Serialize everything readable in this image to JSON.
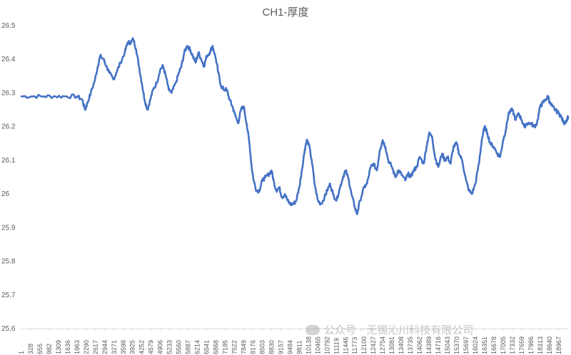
{
  "chart_data": {
    "type": "line",
    "title": "CH1-厚度",
    "xlabel": "",
    "ylabel": "",
    "ylim": [
      25.6,
      26.5
    ],
    "yticks": [
      "25.6",
      "25.7",
      "25.8",
      "25.9",
      "26",
      "26.1",
      "26.2",
      "26.3",
      "26.4",
      "26.5"
    ],
    "x_tick_labels": [
      "1",
      "328",
      "655",
      "982",
      "1309",
      "1636",
      "1963",
      "2290",
      "2617",
      "2944",
      "3271",
      "3598",
      "3925",
      "4252",
      "4579",
      "4906",
      "5233",
      "5560",
      "5887",
      "6214",
      "6541",
      "6868",
      "7195",
      "7522",
      "7849",
      "8176",
      "8503",
      "8830",
      "9157",
      "9484",
      "9811",
      "10138",
      "10465",
      "10792",
      "11119",
      "11446",
      "11773",
      "12100",
      "12427",
      "12754",
      "13081",
      "13408",
      "13735",
      "14062",
      "14389",
      "14716",
      "15043",
      "15370",
      "15697",
      "16024",
      "16351",
      "16678",
      "17005",
      "17332",
      "17659",
      "17986",
      "18313",
      "18640",
      "18967"
    ],
    "x_max": 19300,
    "series": [
      {
        "color": "#4472C4",
        "points": [
          [
            1,
            26.29
          ],
          [
            400,
            26.29
          ],
          [
            800,
            26.29
          ],
          [
            1200,
            26.29
          ],
          [
            1600,
            26.29
          ],
          [
            1963,
            26.29
          ],
          [
            2150,
            26.28
          ],
          [
            2250,
            26.25
          ],
          [
            2330,
            26.27
          ],
          [
            2450,
            26.3
          ],
          [
            2600,
            26.34
          ],
          [
            2700,
            26.38
          ],
          [
            2780,
            26.41
          ],
          [
            2900,
            26.4
          ],
          [
            3000,
            26.38
          ],
          [
            3100,
            26.36
          ],
          [
            3250,
            26.34
          ],
          [
            3350,
            26.36
          ],
          [
            3500,
            26.39
          ],
          [
            3650,
            26.42
          ],
          [
            3750,
            26.45
          ],
          [
            3850,
            26.45
          ],
          [
            3950,
            26.46
          ],
          [
            4050,
            26.43
          ],
          [
            4150,
            26.38
          ],
          [
            4250,
            26.33
          ],
          [
            4350,
            26.28
          ],
          [
            4450,
            26.25
          ],
          [
            4550,
            26.28
          ],
          [
            4650,
            26.31
          ],
          [
            4780,
            26.33
          ],
          [
            4900,
            26.37
          ],
          [
            5000,
            26.38
          ],
          [
            5100,
            26.35
          ],
          [
            5200,
            26.31
          ],
          [
            5300,
            26.3
          ],
          [
            5450,
            26.33
          ],
          [
            5560,
            26.36
          ],
          [
            5650,
            26.38
          ],
          [
            5750,
            26.42
          ],
          [
            5850,
            26.44
          ],
          [
            5950,
            26.43
          ],
          [
            6050,
            26.41
          ],
          [
            6150,
            26.39
          ],
          [
            6250,
            26.42
          ],
          [
            6350,
            26.4
          ],
          [
            6450,
            26.38
          ],
          [
            6541,
            26.41
          ],
          [
            6650,
            26.42
          ],
          [
            6750,
            26.44
          ],
          [
            6868,
            26.4
          ],
          [
            6950,
            26.36
          ],
          [
            7050,
            26.32
          ],
          [
            7150,
            26.31
          ],
          [
            7250,
            26.31
          ],
          [
            7350,
            26.28
          ],
          [
            7450,
            26.26
          ],
          [
            7522,
            26.24
          ],
          [
            7650,
            26.21
          ],
          [
            7750,
            26.25
          ],
          [
            7849,
            26.26
          ],
          [
            7950,
            26.21
          ],
          [
            8050,
            26.15
          ],
          [
            8130,
            26.08
          ],
          [
            8200,
            26.04
          ],
          [
            8300,
            26.01
          ],
          [
            8400,
            26.01
          ],
          [
            8503,
            26.04
          ],
          [
            8620,
            26.05
          ],
          [
            8750,
            26.06
          ],
          [
            8830,
            26.07
          ],
          [
            8900,
            26.04
          ],
          [
            9000,
            26.01
          ],
          [
            9100,
            26.02
          ],
          [
            9200,
            25.99
          ],
          [
            9300,
            26.0
          ],
          [
            9400,
            25.98
          ],
          [
            9484,
            25.97
          ],
          [
            9600,
            25.97
          ],
          [
            9700,
            25.98
          ],
          [
            9811,
            26.02
          ],
          [
            9900,
            26.07
          ],
          [
            10000,
            26.13
          ],
          [
            10070,
            26.16
          ],
          [
            10138,
            26.15
          ],
          [
            10250,
            26.1
          ],
          [
            10350,
            26.03
          ],
          [
            10465,
            25.98
          ],
          [
            10580,
            25.97
          ],
          [
            10700,
            25.99
          ],
          [
            10792,
            26.01
          ],
          [
            10900,
            26.03
          ],
          [
            11000,
            26.0
          ],
          [
            11119,
            25.98
          ],
          [
            11250,
            26.02
          ],
          [
            11350,
            26.05
          ],
          [
            11446,
            26.07
          ],
          [
            11560,
            26.04
          ],
          [
            11650,
            26.0
          ],
          [
            11773,
            25.96
          ],
          [
            11850,
            25.94
          ],
          [
            11950,
            25.98
          ],
          [
            12100,
            26.02
          ],
          [
            12200,
            26.03
          ],
          [
            12330,
            26.08
          ],
          [
            12427,
            26.09
          ],
          [
            12550,
            26.07
          ],
          [
            12650,
            26.13
          ],
          [
            12754,
            26.16
          ],
          [
            12850,
            26.14
          ],
          [
            12950,
            26.1
          ],
          [
            13081,
            26.08
          ],
          [
            13200,
            26.05
          ],
          [
            13300,
            26.07
          ],
          [
            13408,
            26.06
          ],
          [
            13550,
            26.04
          ],
          [
            13650,
            26.06
          ],
          [
            13735,
            26.05
          ],
          [
            13850,
            26.07
          ],
          [
            13950,
            26.08
          ],
          [
            14062,
            26.11
          ],
          [
            14200,
            26.09
          ],
          [
            14300,
            26.14
          ],
          [
            14389,
            26.18
          ],
          [
            14500,
            26.17
          ],
          [
            14600,
            26.11
          ],
          [
            14716,
            26.08
          ],
          [
            14850,
            26.12
          ],
          [
            14950,
            26.1
          ],
          [
            15043,
            26.11
          ],
          [
            15150,
            26.09
          ],
          [
            15250,
            26.14
          ],
          [
            15370,
            26.15
          ],
          [
            15450,
            26.12
          ],
          [
            15560,
            26.1
          ],
          [
            15697,
            26.04
          ],
          [
            15800,
            26.01
          ],
          [
            15900,
            26.0
          ],
          [
            16024,
            26.03
          ],
          [
            16150,
            26.09
          ],
          [
            16250,
            26.16
          ],
          [
            16351,
            26.2
          ],
          [
            16450,
            26.18
          ],
          [
            16550,
            26.15
          ],
          [
            16678,
            26.14
          ],
          [
            16800,
            26.12
          ],
          [
            16900,
            26.11
          ],
          [
            17005,
            26.16
          ],
          [
            17100,
            26.19
          ],
          [
            17200,
            26.24
          ],
          [
            17332,
            26.25
          ],
          [
            17450,
            26.22
          ],
          [
            17550,
            26.24
          ],
          [
            17659,
            26.22
          ],
          [
            17750,
            26.2
          ],
          [
            17850,
            26.21
          ],
          [
            17986,
            26.21
          ],
          [
            18100,
            26.2
          ],
          [
            18200,
            26.21
          ],
          [
            18313,
            26.26
          ],
          [
            18400,
            26.27
          ],
          [
            18500,
            26.28
          ],
          [
            18600,
            26.29
          ],
          [
            18650,
            26.27
          ],
          [
            18740,
            26.26
          ],
          [
            18840,
            26.25
          ],
          [
            18967,
            26.24
          ],
          [
            19050,
            26.23
          ],
          [
            19150,
            26.21
          ],
          [
            19250,
            26.22
          ],
          [
            19300,
            26.23
          ]
        ]
      }
    ]
  },
  "watermark": {
    "text": "公众号 · 无锡沁川科技有限公司"
  }
}
